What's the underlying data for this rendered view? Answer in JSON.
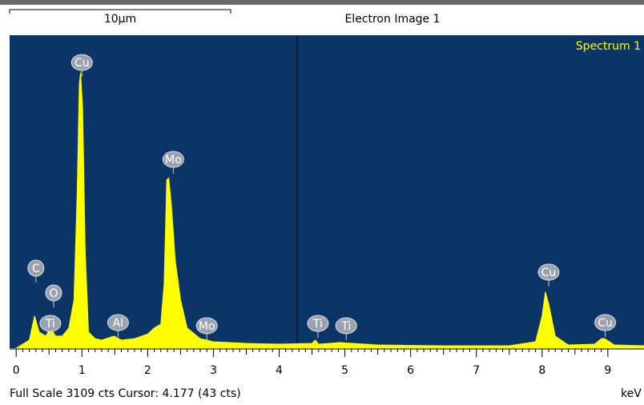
{
  "image_caption": {
    "scale_bar": "10μm",
    "label": "Electron Image 1"
  },
  "chart_data": {
    "type": "area",
    "title": "Spectrum 1",
    "xlabel": "keV",
    "color": "#ffff00",
    "background": "#0b3467",
    "x": [
      0.0,
      0.1,
      0.2,
      0.28,
      0.35,
      0.45,
      0.52,
      0.6,
      0.7,
      0.8,
      0.88,
      0.93,
      0.96,
      0.98,
      1.01,
      1.05,
      1.1,
      1.2,
      1.3,
      1.49,
      1.6,
      1.8,
      2.0,
      2.1,
      2.2,
      2.25,
      2.29,
      2.32,
      2.36,
      2.42,
      2.5,
      2.6,
      2.8,
      3.0,
      3.5,
      4.0,
      4.5,
      4.55,
      4.6,
      4.93,
      5.5,
      6.5,
      7.5,
      7.9,
      8.0,
      8.05,
      8.1,
      8.2,
      8.4,
      8.8,
      8.9,
      8.95,
      9.1,
      9.55
    ],
    "values": [
      0,
      40,
      80,
      320,
      160,
      120,
      200,
      120,
      120,
      200,
      480,
      1590,
      2620,
      2740,
      2390,
      950,
      160,
      95,
      80,
      120,
      80,
      95,
      140,
      200,
      240,
      640,
      1670,
      1690,
      1430,
      870,
      480,
      200,
      95,
      64,
      48,
      40,
      48,
      80,
      40,
      56,
      32,
      24,
      24,
      64,
      320,
      560,
      440,
      120,
      32,
      40,
      95,
      95,
      32,
      24
    ],
    "xlim": [
      -0.1,
      9.55
    ],
    "ylim": [
      0,
      3109
    ],
    "xticks": [
      0,
      1,
      2,
      3,
      4,
      5,
      6,
      7,
      8,
      9
    ],
    "annotations": [
      {
        "text": "Cu",
        "x": 1.0,
        "y": 2838
      },
      {
        "text": "C",
        "x": 0.3,
        "y": 795
      },
      {
        "text": "O",
        "x": 0.57,
        "y": 549
      },
      {
        "text": "Ti",
        "x": 0.52,
        "y": 246
      },
      {
        "text": "Al",
        "x": 1.55,
        "y": 254
      },
      {
        "text": "Mo",
        "x": 2.39,
        "y": 1876
      },
      {
        "text": "Mo",
        "x": 2.9,
        "y": 223
      },
      {
        "text": "Ti",
        "x": 4.59,
        "y": 246
      },
      {
        "text": "Ti",
        "x": 5.02,
        "y": 223
      },
      {
        "text": "Cu",
        "x": 8.1,
        "y": 755
      },
      {
        "text": "Cu",
        "x": 8.96,
        "y": 254
      }
    ],
    "footer": "Full Scale 3109 cts Cursor: 4.177  (43 cts)"
  }
}
